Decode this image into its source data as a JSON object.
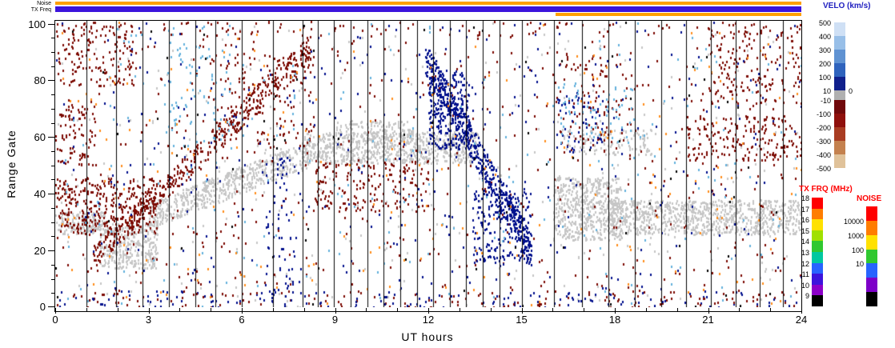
{
  "top_bars": {
    "noise_label": "Noise",
    "txfreq_label": "TX Freq",
    "noise_bar": {
      "color": "#ffa000",
      "t0": 0,
      "t1": 24
    },
    "txfreq_bar": {
      "color": "#3c14dc",
      "t0": 0,
      "t1": 24
    },
    "txfreq_bar_alt": {
      "color": "#ffa000",
      "t0": 16.1,
      "t1": 24
    }
  },
  "axes": {
    "x": {
      "label": "UT hours",
      "min": 0,
      "max": 24,
      "major_ticks": [
        0,
        3,
        6,
        9,
        12,
        15,
        18,
        21,
        24
      ],
      "minor_step": 1
    },
    "y": {
      "label": "Range Gate",
      "min": 0,
      "max": 101,
      "major_ticks": [
        0,
        20,
        40,
        60,
        80,
        100
      ],
      "minor_step": 5
    }
  },
  "colorbars": {
    "velo": {
      "title": "VELO (km/s)",
      "title_color": "#2020c0",
      "labels": [
        "500",
        "400",
        "300",
        "200",
        "100",
        "10",
        "-10",
        "-100",
        "-200",
        "-300",
        "-400",
        "-500"
      ],
      "zero_label": "0",
      "segments": [
        {
          "c": "#cfe0f5",
          "h": 17
        },
        {
          "c": "#98bfe8",
          "h": 17
        },
        {
          "c": "#5f92d2",
          "h": 17
        },
        {
          "c": "#2f63bd",
          "h": 17
        },
        {
          "c": "#10208c",
          "h": 17
        },
        {
          "c": "#b0b0b0",
          "h": 12
        },
        {
          "c": "#70090b",
          "h": 17
        },
        {
          "c": "#8f100c",
          "h": 17
        },
        {
          "c": "#a93c22",
          "h": 17
        },
        {
          "c": "#c4814e",
          "h": 17
        },
        {
          "c": "#e0c29a",
          "h": 17
        }
      ]
    },
    "txfrq": {
      "title": "TX FRQ (MHz)",
      "title_color": "#ff0000",
      "labels": [
        "18",
        "17",
        "16",
        "15",
        "14",
        "13",
        "12",
        "11",
        "10",
        "9"
      ],
      "segments": [
        "#ff0000",
        "#ff7d00",
        "#ffe100",
        "#a0e000",
        "#30c830",
        "#00c8a0",
        "#2864ff",
        "#3c14dc",
        "#8c00c8",
        "#000000"
      ]
    },
    "noise": {
      "title": "NOISE",
      "title_color": "#ff0000",
      "labels": [
        "10000",
        "1000",
        "100",
        "10"
      ],
      "segments": [
        "#ff0000",
        "#ff7d00",
        "#ffe100",
        "#30c830",
        "#2864ff",
        "#7d00c8",
        "#000000"
      ]
    }
  },
  "chart_data": {
    "type": "rti-scatter",
    "description": "SuperDARN-style range-time summary plot: Doppler velocity scatter vs range gate and UT, with ground scatter in gray, positive velocities in blue, negative in red; top strips show Noise and TX Freq; side colorbars for VELO (km/s), TX FRQ (MHz) and NOISE.",
    "x": {
      "label": "UT hours",
      "range": [
        0,
        24
      ]
    },
    "y": {
      "label": "Range Gate",
      "range": [
        0,
        101
      ]
    },
    "palette": {
      "gray": "#c6c6c6",
      "dark_red": "#7c0a02",
      "navy": "#000f8c",
      "light_blue": "#63b0dc",
      "orange": "#ff8c1a",
      "black": "#000000"
    },
    "vertical_lines": [
      1.0,
      1.95,
      2.8,
      3.65,
      4.5,
      5.15,
      6.0,
      7.0,
      7.95,
      8.45,
      8.95,
      9.5,
      10.05,
      10.55,
      11.1,
      11.65,
      12.15,
      12.7,
      13.2,
      13.75,
      14.3,
      15.0,
      16.05,
      16.95,
      17.8,
      18.65,
      19.5,
      20.3,
      21.1,
      21.9,
      22.65,
      23.4
    ],
    "regions": [
      {
        "t": [
          0,
          1.6
        ],
        "g": [
          26,
          34
        ],
        "fill": 0.6,
        "color": "gray"
      },
      {
        "t": [
          1.4,
          3.3
        ],
        "g": [
          14,
          30
        ],
        "fill": 0.5,
        "color": "gray"
      },
      {
        "t": [
          3.0,
          8.3
        ],
        "gStart": [
          28,
          37
        ],
        "gEnd": [
          50,
          60
        ],
        "fill": 0.5,
        "color": "gray"
      },
      {
        "t": [
          8.0,
          13.6
        ],
        "g": [
          51,
          62
        ],
        "fill": 0.55,
        "color": "gray"
      },
      {
        "t": [
          9.0,
          11.5
        ],
        "g": [
          60,
          66
        ],
        "fill": 0.3,
        "color": "gray"
      },
      {
        "t": [
          16.0,
          18.2
        ],
        "g": [
          24,
          46
        ],
        "fill": 0.5,
        "color": "gray"
      },
      {
        "t": [
          17.8,
          24
        ],
        "g": [
          26,
          38
        ],
        "fill": 0.55,
        "color": "gray"
      },
      {
        "t": [
          16.3,
          19.2
        ],
        "g": [
          54,
          63
        ],
        "fill": 0.22,
        "color": "gray"
      },
      {
        "t": [
          0,
          24
        ],
        "g": [
          0,
          101
        ],
        "fill": 0.006,
        "color": "gray"
      },
      {
        "t": [
          1.2,
          8.2
        ],
        "gStart": [
          14,
          22
        ],
        "gEnd": [
          86,
          97
        ],
        "fill": 0.32,
        "color": "dark_red"
      },
      {
        "t": [
          0,
          3.2
        ],
        "g": [
          26,
          46
        ],
        "fill": 0.22,
        "color": "dark_red"
      },
      {
        "t": [
          0,
          1.3
        ],
        "g": [
          50,
          72
        ],
        "fill": 0.12,
        "color": "dark_red"
      },
      {
        "t": [
          8.3,
          12.0
        ],
        "g": [
          34,
          52
        ],
        "fill": 0.12,
        "color": "dark_red"
      },
      {
        "t": [
          20.3,
          24
        ],
        "g": [
          52,
          68
        ],
        "fill": 0.14,
        "color": "dark_red"
      },
      {
        "t": [
          21,
          24
        ],
        "g": [
          72,
          100
        ],
        "fill": 0.09,
        "color": "dark_red"
      },
      {
        "t": [
          0,
          2.6
        ],
        "g": [
          78,
          101
        ],
        "fill": 0.1,
        "color": "dark_red"
      },
      {
        "t": [
          16,
          18.5
        ],
        "g": [
          55,
          90
        ],
        "fill": 0.05,
        "color": "dark_red"
      },
      {
        "t": [
          5,
          8.3
        ],
        "g": [
          55,
          90
        ],
        "fill": 0.05,
        "color": "dark_red"
      },
      {
        "t": [
          0,
          24
        ],
        "g": [
          96,
          101
        ],
        "fill": 0.03,
        "color": "dark_red"
      },
      {
        "t": [
          0,
          24
        ],
        "g": [
          0,
          101
        ],
        "fill": 0.01,
        "color": "dark_red"
      },
      {
        "t": [
          11.9,
          15.3
        ],
        "gStart": [
          82,
          94
        ],
        "gEnd": [
          14,
          26
        ],
        "fill": 0.55,
        "color": "navy"
      },
      {
        "t": [
          12.0,
          13.3
        ],
        "g": [
          56,
          84
        ],
        "fill": 0.3,
        "color": "navy"
      },
      {
        "t": [
          13.4,
          15.3
        ],
        "g": [
          16,
          42
        ],
        "fill": 0.18,
        "color": "navy"
      },
      {
        "t": [
          16,
          17.6
        ],
        "g": [
          55,
          76
        ],
        "fill": 0.07,
        "color": "navy"
      },
      {
        "t": [
          6.7,
          7.7
        ],
        "g": [
          0,
          55
        ],
        "fill": 0.05,
        "color": "navy"
      },
      {
        "t": [
          0,
          24
        ],
        "g": [
          0,
          101
        ],
        "fill": 0.007,
        "color": "navy"
      },
      {
        "t": [
          3.4,
          5.6
        ],
        "g": [
          55,
          100
        ],
        "fill": 0.035,
        "color": "light_blue"
      },
      {
        "t": [
          16.2,
          18.6
        ],
        "g": [
          58,
          80
        ],
        "fill": 0.05,
        "color": "light_blue"
      },
      {
        "t": [
          0,
          24
        ],
        "g": [
          0,
          101
        ],
        "fill": 0.004,
        "color": "light_blue"
      },
      {
        "t": [
          0,
          24
        ],
        "g": [
          0,
          101
        ],
        "fill": 0.004,
        "color": "orange"
      },
      {
        "t": [
          0,
          24
        ],
        "g": [
          0,
          6
        ],
        "fill": 0.04,
        "color": "navy"
      },
      {
        "t": [
          0,
          24
        ],
        "g": [
          0,
          6
        ],
        "fill": 0.04,
        "color": "dark_red"
      },
      {
        "t": [
          0,
          24
        ],
        "g": [
          0,
          101
        ],
        "fill": 0.0015,
        "color": "black"
      }
    ]
  }
}
